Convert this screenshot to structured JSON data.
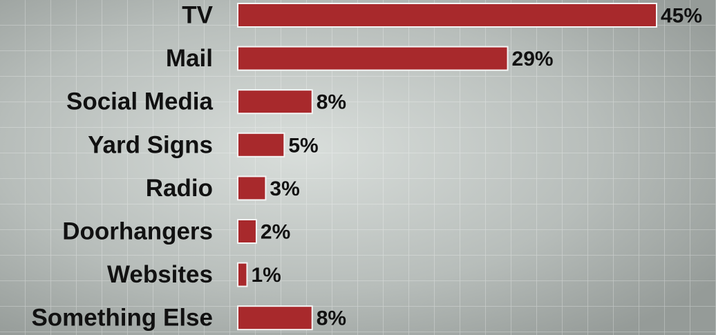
{
  "chart_data": {
    "type": "bar",
    "orientation": "horizontal",
    "categories": [
      "TV",
      "Mail",
      "Social Media",
      "Yard Signs",
      "Radio",
      "Doorhangers",
      "Websites",
      "Something Else"
    ],
    "values": [
      45,
      29,
      8,
      5,
      3,
      2,
      1,
      8
    ],
    "value_labels": [
      "45%",
      "29%",
      "8%",
      "5%",
      "3%",
      "2%",
      "1%",
      "8%"
    ],
    "color": "#a8292c"
  }
}
